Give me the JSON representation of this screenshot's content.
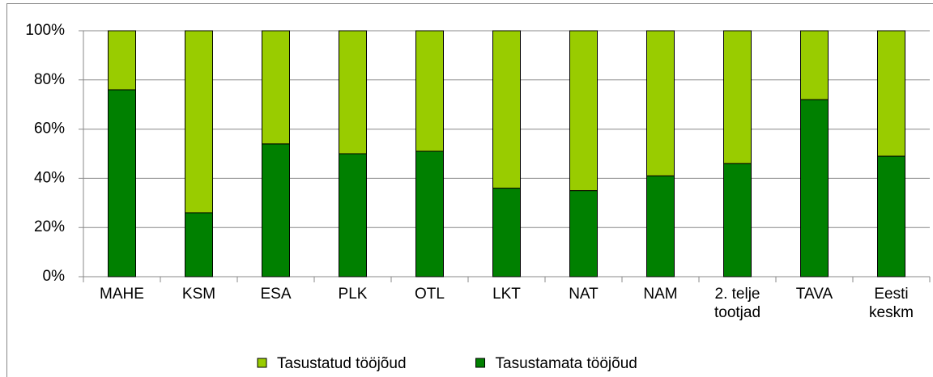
{
  "chart_data": {
    "type": "bar",
    "stacked": true,
    "categories": [
      "MAHE",
      "KSM",
      "ESA",
      "PLK",
      "OTL",
      "LKT",
      "NAT",
      "NAM",
      "2. telje\ntootjad",
      "TAVA",
      "Eesti\nkeskm"
    ],
    "series": [
      {
        "name": "Tasustamata tööjõud",
        "color": "#008000",
        "values": [
          76,
          26,
          54,
          50,
          51,
          36,
          35,
          41,
          46,
          72,
          49
        ]
      },
      {
        "name": "Tasustatud tööjõud",
        "color": "#99cc00",
        "values": [
          24,
          74,
          46,
          50,
          49,
          64,
          65,
          59,
          54,
          28,
          51
        ]
      }
    ],
    "ylim": [
      0,
      100
    ],
    "yticks": [
      {
        "value": 0,
        "label": "0%"
      },
      {
        "value": 20,
        "label": "20%"
      },
      {
        "value": 40,
        "label": "40%"
      },
      {
        "value": 60,
        "label": "60%"
      },
      {
        "value": 80,
        "label": "80%"
      },
      {
        "value": 100,
        "label": "100%"
      }
    ],
    "grid": true,
    "legend": "bottom"
  }
}
